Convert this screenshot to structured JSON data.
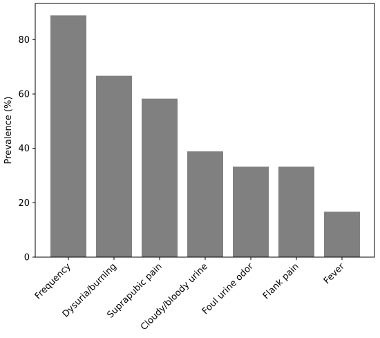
{
  "chart_data": {
    "type": "bar",
    "title": "",
    "xlabel": "",
    "ylabel": "Prevalence (%)",
    "categories": [
      "Frequency",
      "Dysuria/burning",
      "Suprapubic pain",
      "Cloudy/bloody urine",
      "Foul urine odor",
      "Flank pain",
      "Fever"
    ],
    "values": [
      88.9,
      66.7,
      58.3,
      38.9,
      33.3,
      33.3,
      16.7
    ],
    "ylim": [
      0,
      93.3
    ],
    "yticks": [
      "0",
      "20",
      "40",
      "60",
      "80"
    ],
    "bar_color": "#808080",
    "grid": false,
    "legend": "none"
  }
}
